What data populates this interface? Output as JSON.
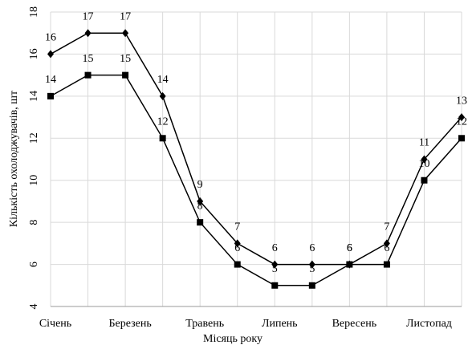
{
  "chart_data": {
    "type": "line",
    "x_label": "Місяць року",
    "y_label": "Кількість охолоджувачів, шт",
    "categories": [
      "Січень",
      null,
      "Березень",
      null,
      "Травень",
      null,
      "Липень",
      null,
      "Вересень",
      null,
      "Листопад",
      null
    ],
    "series": [
      {
        "color": "#000000",
        "marker": "diamond",
        "values": [
          16,
          17,
          17,
          14,
          9,
          7,
          6,
          6,
          6,
          7,
          11,
          13
        ]
      },
      {
        "color": "#000000",
        "marker": "square",
        "values": [
          14,
          15,
          15,
          12,
          8,
          6,
          5,
          5,
          6,
          6,
          10,
          12
        ]
      }
    ],
    "ylim": [
      4,
      18
    ],
    "yticks": [
      4,
      6,
      8,
      10,
      12,
      14,
      16,
      18
    ],
    "grid": true
  }
}
